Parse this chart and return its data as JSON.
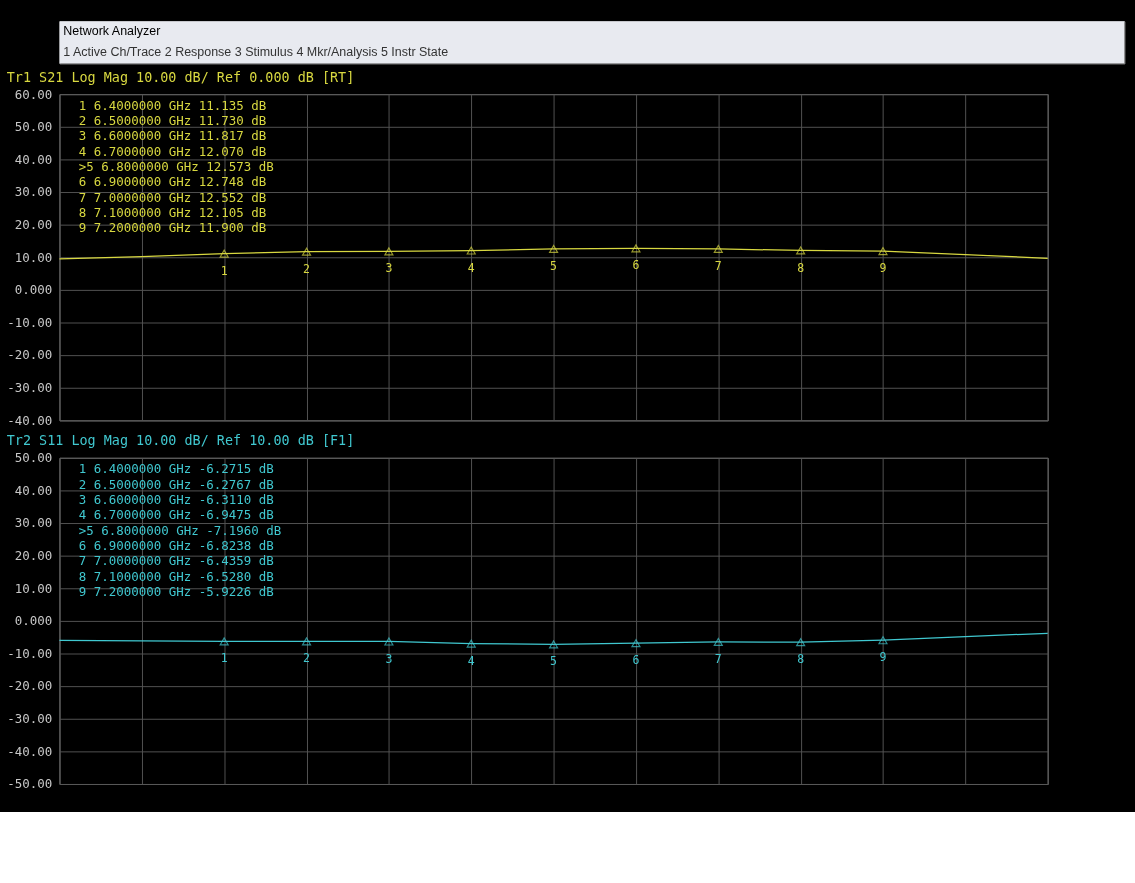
{
  "chart_data": [
    {
      "type": "other",
      "title": "Network Analyzer",
      "subtitle": "1 Active Ch/Trace   2 Response   3 Stimulus   4 Mkr/Analysis   5 Instr State"
    },
    {
      "type": "line",
      "title": "Tr1 S21 Log Mag 10.00 dB/ Ref 0.000 dB [RT]",
      "tick_labels": "y",
      "grid": true,
      "categories": [
        null,
        null,
        null,
        null,
        null,
        null,
        null,
        null,
        null,
        null,
        null,
        null,
        null
      ],
      "ylim": [
        -40,
        60
      ],
      "yticks": [
        {
          "value": 60,
          "label": "60.00"
        },
        {
          "value": 50,
          "label": "50.00"
        },
        {
          "value": 40,
          "label": "40.00"
        },
        {
          "value": 30,
          "label": "30.00"
        },
        {
          "value": 20,
          "label": "20.00"
        },
        {
          "value": 10,
          "label": "10.00"
        },
        {
          "value": 0,
          "label": "0.000"
        },
        {
          "value": -10,
          "label": "-10.00"
        },
        {
          "value": -20,
          "label": "-20.00"
        },
        {
          "value": -30,
          "label": "-30.00"
        },
        {
          "value": -40,
          "label": "-40.00"
        }
      ],
      "series": [
        {
          "type": "line",
          "color": "#d8d840",
          "values": [
            9.5,
            10.2,
            11.135,
            11.73,
            11.817,
            12.07,
            12.573,
            12.748,
            12.552,
            12.105,
            11.9,
            10.8,
            9.7
          ]
        },
        {
          "type": "scatter",
          "marker": "triangle",
          "color": "#d8d840",
          "values": [
            null,
            null,
            11.135,
            11.73,
            11.817,
            12.07,
            12.573,
            12.748,
            12.552,
            12.105,
            11.9,
            null,
            null
          ]
        }
      ],
      "annotations": [
        "1   6.4000000 GHz   11.135 dB",
        "2   6.5000000 GHz   11.730 dB",
        "3   6.6000000 GHz   11.817 dB",
        "4   6.7000000 GHz   12.070 dB",
        ">5   6.8000000 GHz   12.573 dB",
        "6   6.9000000 GHz   12.748 dB",
        "7   7.0000000 GHz   12.552 dB",
        "8   7.1000000 GHz   12.105 dB",
        "9   7.2000000 GHz   11.900 dB",
        {
          "text": "1",
          "y": 11.135
        },
        {
          "text": "2",
          "y": 11.73
        },
        {
          "text": "3",
          "y": 11.817
        },
        {
          "text": "4",
          "y": 12.07
        },
        {
          "text": "5",
          "y": 12.573
        },
        {
          "text": "6",
          "y": 12.748
        },
        {
          "text": "7",
          "y": 12.552
        },
        {
          "text": "8",
          "y": 12.105
        },
        {
          "text": "9",
          "y": 11.9
        }
      ]
    },
    {
      "type": "line",
      "title": "Tr2 S11 Log Mag 10.00 dB/ Ref 10.00 dB [F1]",
      "tick_labels": "y",
      "grid": true,
      "categories": [
        null,
        null,
        null,
        null,
        null,
        null,
        null,
        null,
        null,
        null,
        null,
        null,
        null
      ],
      "ylim": [
        -50,
        50
      ],
      "yticks": [
        {
          "value": 50,
          "label": "50.00"
        },
        {
          "value": 40,
          "label": "40.00"
        },
        {
          "value": 30,
          "label": "30.00"
        },
        {
          "value": 20,
          "label": "20.00"
        },
        {
          "value": 10,
          "label": "10.00"
        },
        {
          "value": 0,
          "label": "0.000"
        },
        {
          "value": -10,
          "label": "-10.00"
        },
        {
          "value": -20,
          "label": "-20.00"
        },
        {
          "value": -30,
          "label": "-30.00"
        },
        {
          "value": -40,
          "label": "-40.00"
        },
        {
          "value": -50,
          "label": "-50.00"
        }
      ],
      "series": [
        {
          "type": "line",
          "color": "#40c8d0",
          "values": [
            -6.0,
            -6.1,
            -6.2715,
            -6.2767,
            -6.311,
            -6.9475,
            -7.196,
            -6.8238,
            -6.4359,
            -6.528,
            -5.9226,
            -4.8,
            -3.8
          ]
        },
        {
          "type": "scatter",
          "marker": "triangle",
          "color": "#40c8d0",
          "values": [
            null,
            null,
            -6.2715,
            -6.2767,
            -6.311,
            -6.9475,
            -7.196,
            -6.8238,
            -6.4359,
            -6.528,
            -5.9226,
            null,
            null
          ]
        }
      ],
      "annotations": [
        "1   6.4000000 GHz  -6.2715 dB",
        "2   6.5000000 GHz  -6.2767 dB",
        "3   6.6000000 GHz  -6.3110 dB",
        "4   6.7000000 GHz  -6.9475 dB",
        ">5   6.8000000 GHz  -7.1960 dB",
        "6   6.9000000 GHz  -6.8238 dB",
        "7   7.0000000 GHz  -6.4359 dB",
        "8   7.1000000 GHz  -6.5280 dB",
        "9   7.2000000 GHz  -5.9226 dB",
        {
          "text": "1",
          "y": -6.2715
        },
        {
          "text": "2",
          "y": -6.2767
        },
        {
          "text": "3",
          "y": -6.311
        },
        {
          "text": "4",
          "y": -6.9475
        },
        {
          "text": "5",
          "y": -7.196
        },
        {
          "text": "6",
          "y": -6.8238
        },
        {
          "text": "7",
          "y": -6.4359
        },
        {
          "text": "8",
          "y": -6.528
        },
        {
          "text": "9",
          "y": -5.9226
        }
      ]
    }
  ]
}
